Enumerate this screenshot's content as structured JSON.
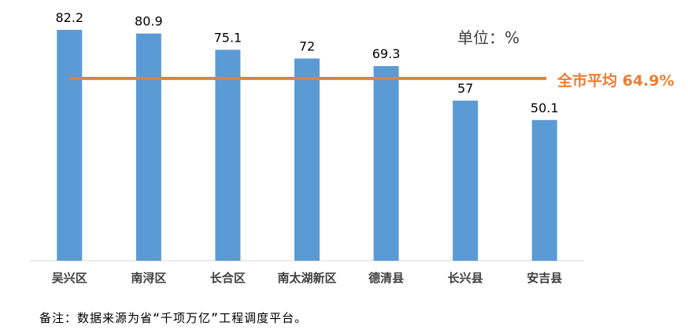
{
  "chart_data": {
    "type": "bar",
    "categories": [
      "吴兴区",
      "南浔区",
      "长合区",
      "南太湖新区",
      "德清县",
      "长兴县",
      "安吉县"
    ],
    "values": [
      82.2,
      80.9,
      75.1,
      72,
      69.3,
      57,
      50.1
    ],
    "value_labels": [
      "82.2",
      "80.9",
      "75.1",
      "72",
      "69.3",
      "57",
      "50.1"
    ],
    "unit_label": "单位：%",
    "reference_line": {
      "value": 64.9,
      "label": "全市平均 64.9%",
      "color": "#ED7D31"
    },
    "bar_color": "#5B9BD5",
    "ylim": [
      0,
      85
    ],
    "grid": false,
    "legend": "none"
  },
  "footnote": "备注：数据来源为省“千项万亿”工程调度平台。"
}
